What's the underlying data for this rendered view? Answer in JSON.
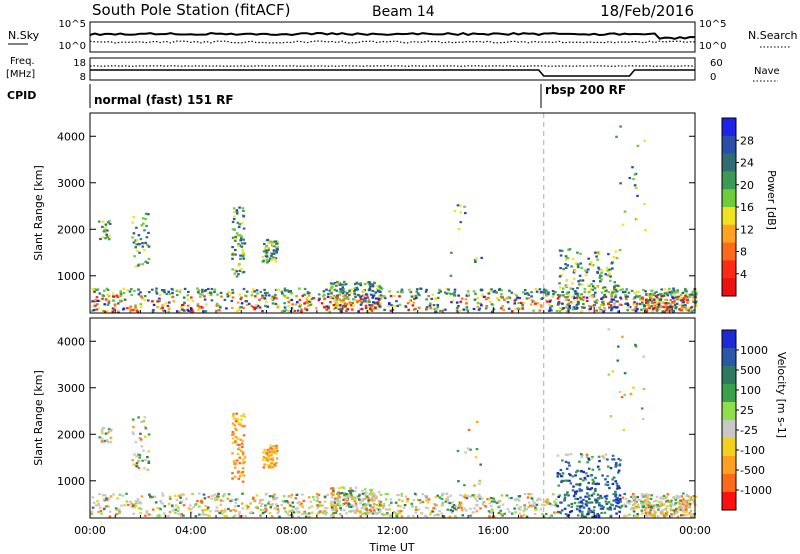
{
  "header": {
    "station": "South Pole Station (fitACF)",
    "beam": "Beam 14",
    "date": "18/Feb/2016"
  },
  "noise_panel": {
    "left_label": "N.Sky",
    "right_label": "N.Search",
    "left_ticks": [
      "10^5",
      "10^0"
    ],
    "right_ticks": [
      "10^5",
      "10^0"
    ]
  },
  "freq_panel": {
    "left_label_line1": "Freq.",
    "left_label_line2": "[MHz]",
    "right_label": "Nave",
    "left_ticks": [
      "18",
      "8"
    ],
    "right_ticks": [
      "60",
      "0"
    ]
  },
  "cpid_panel": {
    "label": "CPID",
    "modes": [
      {
        "name": "normal (fast) 151 RF",
        "start_hour": 0
      },
      {
        "name": "rbsp 200 RF",
        "start_hour": 18
      }
    ]
  },
  "chart_data": [
    {
      "type": "heatmap",
      "title": "",
      "quantity": "Power",
      "ylabel": "Slant Range [km]",
      "xlabel": "",
      "x_range_hours": [
        0,
        24
      ],
      "ylim": [
        200,
        4500
      ],
      "yticks": [
        1000,
        2000,
        3000,
        4000
      ],
      "colorbar": {
        "label": "Power [dB]",
        "ticks": [
          "4",
          "8",
          "12",
          "16",
          "20",
          "24",
          "28"
        ],
        "colors": [
          "#1c24e8",
          "#2b4fa8",
          "#2e6e73",
          "#3b9a55",
          "#6ccc3a",
          "#f2e320",
          "#ffa320",
          "#ff6a1a",
          "#ff2a12",
          "#ee1010"
        ]
      },
      "mode_change_hour": 18
    },
    {
      "type": "heatmap",
      "title": "",
      "quantity": "Velocity",
      "ylabel": "Slant Range [km]",
      "xlabel": "Time UT",
      "x_range_hours": [
        0,
        24
      ],
      "xticks": [
        "00:00",
        "04:00",
        "08:00",
        "12:00",
        "16:00",
        "20:00",
        "00:00"
      ],
      "ylim": [
        200,
        4500
      ],
      "yticks": [
        1000,
        2000,
        3000,
        4000
      ],
      "colorbar": {
        "label": "Velocity [m s-1]",
        "ticks": [
          "1000",
          "500",
          "100",
          "25",
          "-25",
          "-100",
          "-500",
          "-1000"
        ],
        "colors": [
          "#1c2ad6",
          "#2a58a8",
          "#2e7a60",
          "#3aa04a",
          "#8ee04a",
          "#c8c8c8",
          "#f2d020",
          "#ffa020",
          "#ff6a18",
          "#ff1010"
        ]
      },
      "mode_change_hour": 18
    }
  ]
}
